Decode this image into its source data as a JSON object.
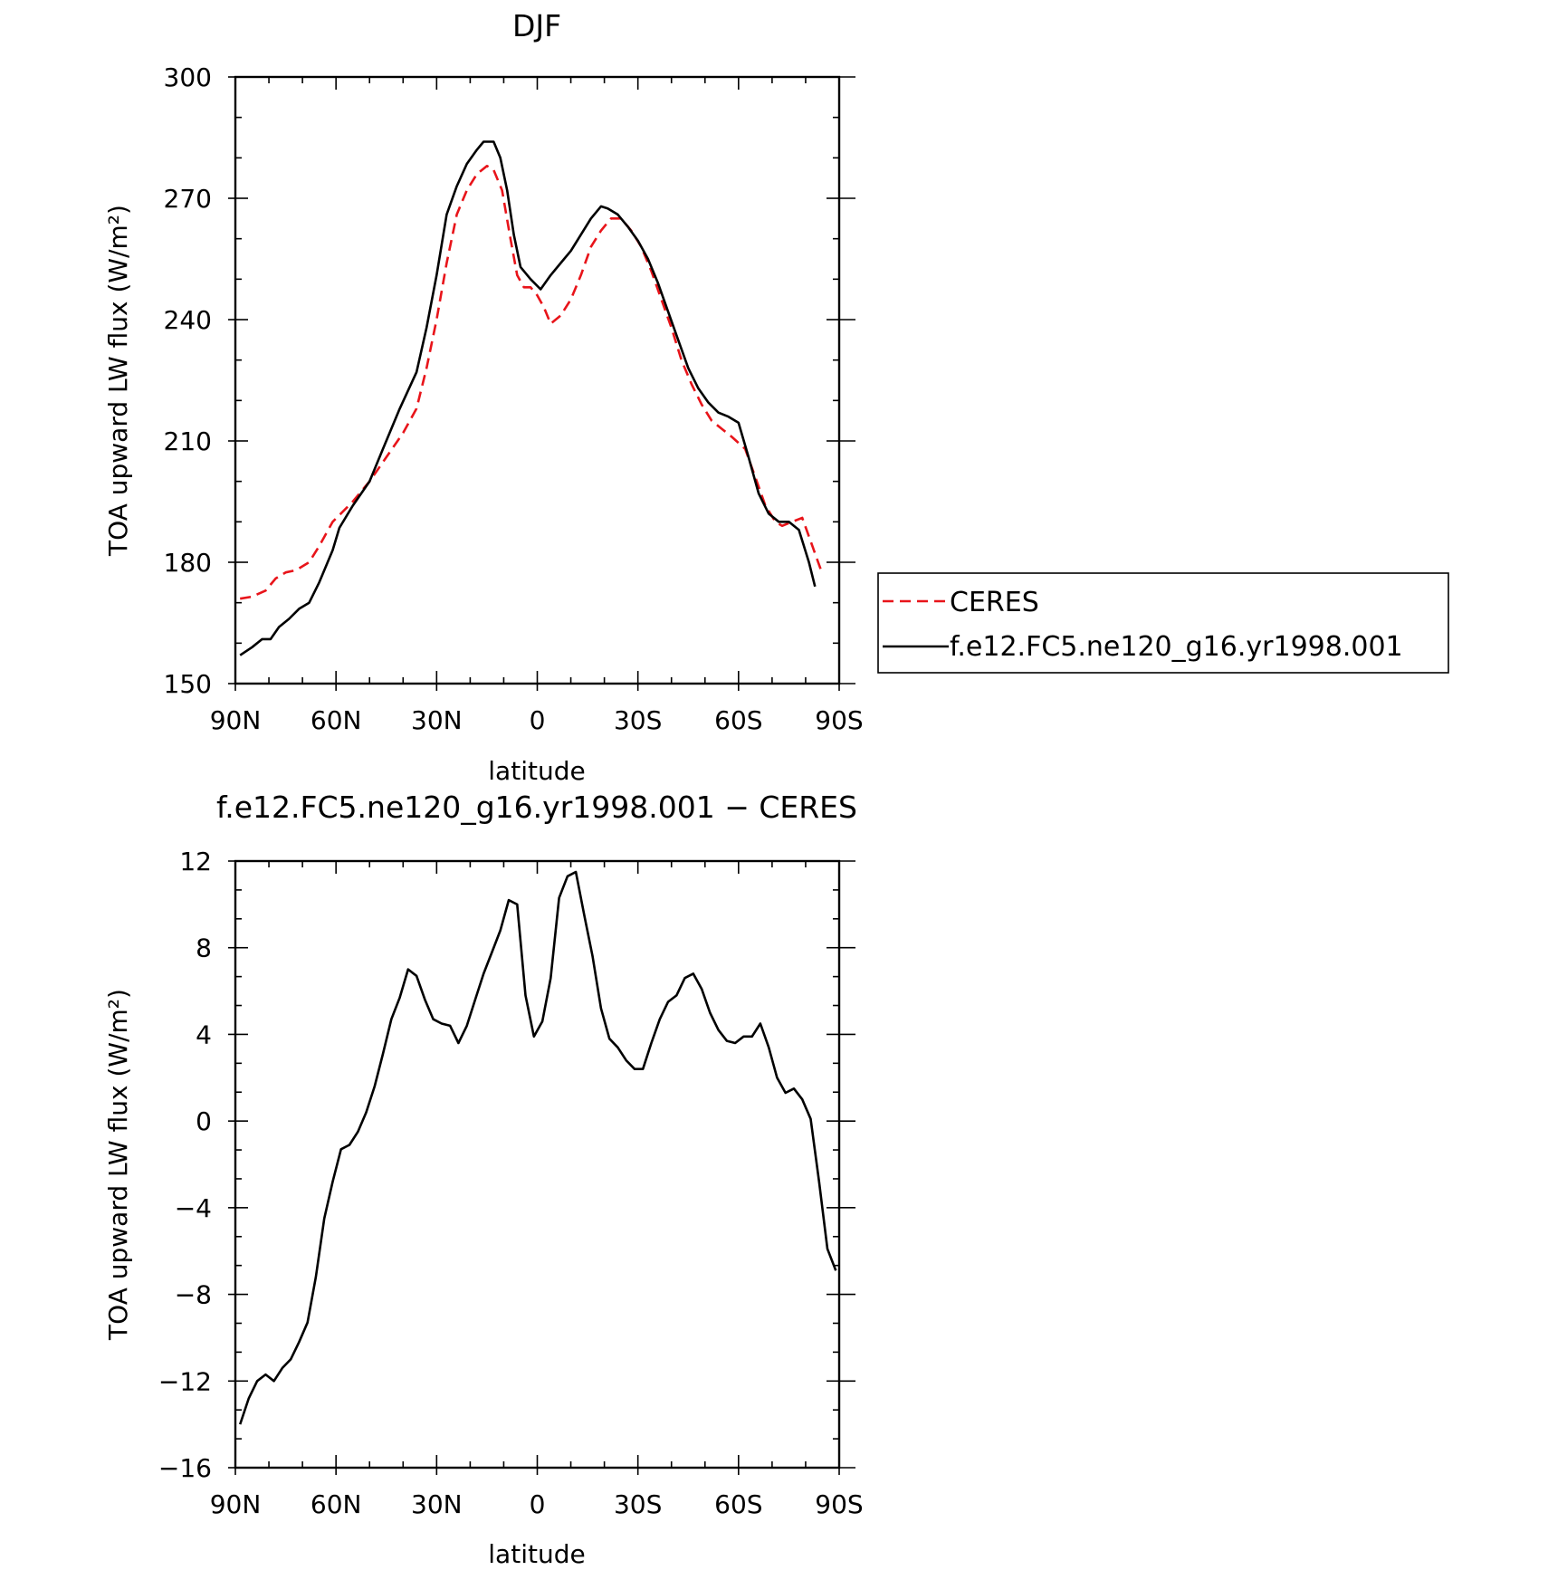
{
  "chart_data": [
    {
      "type": "line",
      "title": "DJF",
      "xlabel": "latitude",
      "ylabel": "TOA upward LW flux (W/m²)",
      "xlim": [
        -90,
        90
      ],
      "ylim": [
        150,
        300
      ],
      "x_ticks": [
        -90,
        -60,
        -30,
        0,
        30,
        60,
        90
      ],
      "x_tick_labels": [
        "90N",
        "60N",
        "30N",
        "0",
        "30S",
        "60S",
        "90S"
      ],
      "y_ticks": [
        150,
        180,
        210,
        240,
        270,
        300
      ],
      "y_tick_labels": [
        "150",
        "180",
        "210",
        "240",
        "270",
        "300"
      ],
      "grid": false,
      "legend_position": "right",
      "series": [
        {
          "name": "CERES",
          "color": "#e8141a",
          "dash": "dashed",
          "points": [
            [
              -88.6,
              171
            ],
            [
              -85,
              171.5
            ],
            [
              -81,
              173
            ],
            [
              -78,
              176
            ],
            [
              -75,
              177.5
            ],
            [
              -72,
              178
            ],
            [
              -68,
              180
            ],
            [
              -65,
              184
            ],
            [
              -61,
              190
            ],
            [
              -55,
              195
            ],
            [
              -50,
              200
            ],
            [
              -45,
              206
            ],
            [
              -40,
              212
            ],
            [
              -36,
              218
            ],
            [
              -33,
              228
            ],
            [
              -30,
              240
            ],
            [
              -27,
              254
            ],
            [
              -24,
              266
            ],
            [
              -21,
              272
            ],
            [
              -18,
              276
            ],
            [
              -15,
              278
            ],
            [
              -13,
              277
            ],
            [
              -10.5,
              272
            ],
            [
              -8,
              260
            ],
            [
              -6,
              251
            ],
            [
              -4,
              248
            ],
            [
              -2,
              248
            ],
            [
              0,
              246
            ],
            [
              2,
              243
            ],
            [
              4,
              239
            ],
            [
              7,
              241
            ],
            [
              10,
              245
            ],
            [
              13,
              251
            ],
            [
              16,
              258
            ],
            [
              19,
              262
            ],
            [
              22,
              265
            ],
            [
              25,
              265
            ],
            [
              28,
              262
            ],
            [
              31,
              258
            ],
            [
              34,
              252
            ],
            [
              37,
              245
            ],
            [
              40,
              238
            ],
            [
              43,
              230
            ],
            [
              46,
              224
            ],
            [
              49,
              219
            ],
            [
              52,
              215
            ],
            [
              55,
              213
            ],
            [
              58,
              211
            ],
            [
              62,
              208
            ],
            [
              65,
              201
            ],
            [
              68,
              194
            ],
            [
              71,
              190
            ],
            [
              73,
              189
            ],
            [
              76,
              190
            ],
            [
              79,
              191
            ],
            [
              82,
              184
            ],
            [
              84.6,
              178
            ]
          ]
        },
        {
          "name": "f.e12.FC5.ne120_g16.yr1998.001",
          "color": "#000000",
          "dash": "solid",
          "points": [
            [
              -88.6,
              157
            ],
            [
              -85,
              159
            ],
            [
              -82,
              161
            ],
            [
              -79.5,
              161
            ],
            [
              -77,
              164
            ],
            [
              -74,
              166
            ],
            [
              -71,
              168.5
            ],
            [
              -68,
              170
            ],
            [
              -65,
              175
            ],
            [
              -61,
              183
            ],
            [
              -59,
              188.5
            ],
            [
              -55,
              194
            ],
            [
              -50,
              200
            ],
            [
              -46,
              208
            ],
            [
              -41,
              218
            ],
            [
              -36,
              227
            ],
            [
              -33,
              238
            ],
            [
              -30,
              251
            ],
            [
              -27,
              266
            ],
            [
              -24,
              273
            ],
            [
              -21,
              278.5
            ],
            [
              -18,
              282
            ],
            [
              -16,
              284
            ],
            [
              -13,
              284
            ],
            [
              -11,
              280
            ],
            [
              -9,
              272
            ],
            [
              -7,
              261
            ],
            [
              -5,
              253
            ],
            [
              -2,
              250
            ],
            [
              1,
              247.5
            ],
            [
              4,
              251
            ],
            [
              7,
              254
            ],
            [
              10,
              257
            ],
            [
              13,
              261
            ],
            [
              16,
              265
            ],
            [
              19,
              268
            ],
            [
              21,
              267.5
            ],
            [
              24,
              266
            ],
            [
              27,
              263
            ],
            [
              30,
              259.5
            ],
            [
              33,
              255
            ],
            [
              36,
              249
            ],
            [
              39,
              242
            ],
            [
              42,
              235
            ],
            [
              45,
              228
            ],
            [
              48,
              223
            ],
            [
              51,
              219.5
            ],
            [
              54,
              217
            ],
            [
              57,
              216
            ],
            [
              60,
              214.5
            ],
            [
              63,
              206
            ],
            [
              66,
              197
            ],
            [
              69,
              192
            ],
            [
              72,
              190
            ],
            [
              75,
              190
            ],
            [
              78,
              188
            ],
            [
              81,
              180
            ],
            [
              82.8,
              174
            ]
          ]
        }
      ]
    },
    {
      "type": "line",
      "title": "f.e12.FC5.ne120_g16.yr1998.001 − CERES",
      "xlabel": "latitude",
      "ylabel": "TOA upward LW flux (W/m²)",
      "xlim": [
        -90,
        90
      ],
      "ylim": [
        -16,
        12
      ],
      "x_ticks": [
        -90,
        -60,
        -30,
        0,
        30,
        60,
        90
      ],
      "x_tick_labels": [
        "90N",
        "60N",
        "30N",
        "0",
        "30S",
        "60S",
        "90S"
      ],
      "y_ticks": [
        -16,
        -12,
        -8,
        -4,
        0,
        4,
        8,
        12
      ],
      "y_tick_labels": [
        "−16",
        "−12",
        "−8",
        "−4",
        "0",
        "4",
        "8",
        "12"
      ],
      "grid": false,
      "series": [
        {
          "name": "",
          "color": "#000000",
          "dash": "solid",
          "points": [
            [
              -88.6,
              -14
            ],
            [
              -86,
              -12.8
            ],
            [
              -83.5,
              -12
            ],
            [
              -81,
              -11.7
            ],
            [
              -78.5,
              -12
            ],
            [
              -76,
              -11.4
            ],
            [
              -73.5,
              -11
            ],
            [
              -71,
              -10.2
            ],
            [
              -68.5,
              -9.3
            ],
            [
              -66,
              -7.2
            ],
            [
              -63.5,
              -4.5
            ],
            [
              -61,
              -2.8
            ],
            [
              -58.5,
              -1.3
            ],
            [
              -56,
              -1.1
            ],
            [
              -53.5,
              -0.5
            ],
            [
              -51,
              0.4
            ],
            [
              -48.5,
              1.6
            ],
            [
              -46,
              3.1
            ],
            [
              -43.5,
              4.7
            ],
            [
              -41,
              5.7
            ],
            [
              -38.5,
              7
            ],
            [
              -36,
              6.7
            ],
            [
              -33.5,
              5.6
            ],
            [
              -31,
              4.7
            ],
            [
              -28.5,
              4.5
            ],
            [
              -26,
              4.4
            ],
            [
              -23.5,
              3.6
            ],
            [
              -21,
              4.4
            ],
            [
              -18.5,
              5.6
            ],
            [
              -16,
              6.8
            ],
            [
              -13.5,
              7.8
            ],
            [
              -11,
              8.8
            ],
            [
              -8.5,
              10.2
            ],
            [
              -6,
              10
            ],
            [
              -3.5,
              5.8
            ],
            [
              -1,
              3.9
            ],
            [
              1.5,
              4.6
            ],
            [
              4,
              6.6
            ],
            [
              6.5,
              10.3
            ],
            [
              9,
              11.3
            ],
            [
              11.5,
              11.5
            ],
            [
              14,
              9.5
            ],
            [
              16.5,
              7.6
            ],
            [
              19,
              5.2
            ],
            [
              21.5,
              3.8
            ],
            [
              24,
              3.4
            ],
            [
              26.5,
              2.8
            ],
            [
              29,
              2.4
            ],
            [
              31.5,
              2.4
            ],
            [
              34,
              3.6
            ],
            [
              36.5,
              4.7
            ],
            [
              39,
              5.5
            ],
            [
              41.5,
              5.8
            ],
            [
              44,
              6.6
            ],
            [
              46.5,
              6.8
            ],
            [
              49,
              6.1
            ],
            [
              51.5,
              5
            ],
            [
              54,
              4.2
            ],
            [
              56.5,
              3.7
            ],
            [
              59,
              3.6
            ],
            [
              61.5,
              3.9
            ],
            [
              64,
              3.9
            ],
            [
              66.5,
              4.5
            ],
            [
              69,
              3.4
            ],
            [
              71.5,
              2
            ],
            [
              74,
              1.3
            ],
            [
              76.5,
              1.5
            ],
            [
              79,
              1
            ],
            [
              81.5,
              0.1
            ],
            [
              84,
              -2.8
            ],
            [
              86.5,
              -5.9
            ],
            [
              89,
              -6.9
            ]
          ]
        }
      ]
    }
  ]
}
